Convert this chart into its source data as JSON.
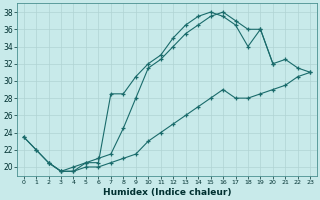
{
  "xlabel": "Humidex (Indice chaleur)",
  "bg_color": "#c8eaea",
  "grid_color": "#b0d4d4",
  "line_color": "#1a6b6b",
  "xlim": [
    -0.5,
    23.5
  ],
  "ylim": [
    19,
    39
  ],
  "line1_x": [
    0,
    1,
    2,
    3,
    4,
    5,
    6,
    7,
    8,
    9,
    10,
    11,
    12,
    13,
    14,
    15,
    16,
    17,
    18,
    19,
    20
  ],
  "line1_y": [
    23.5,
    22,
    20.5,
    19.5,
    19.5,
    20.5,
    20.5,
    28.5,
    28.5,
    30.5,
    32,
    33,
    35,
    36.5,
    37.5,
    38,
    37.5,
    36.5,
    34,
    36,
    32
  ],
  "line2_x": [
    0,
    1,
    2,
    3,
    4,
    5,
    6,
    7,
    8,
    9,
    10,
    11,
    12,
    13,
    14,
    15,
    16,
    17,
    18,
    19,
    20,
    21,
    22,
    23
  ],
  "line2_y": [
    23.5,
    22,
    20.5,
    19.5,
    20,
    20.5,
    21,
    21.5,
    24.5,
    28,
    31.5,
    32.5,
    34,
    35.5,
    36.5,
    37.5,
    38,
    37,
    36,
    36,
    32,
    32.5,
    31.5,
    31
  ],
  "line3_x": [
    2,
    3,
    4,
    5,
    6,
    7,
    8,
    9,
    10,
    11,
    12,
    13,
    14,
    15,
    16,
    17,
    18,
    19,
    20,
    21,
    22,
    23
  ],
  "line3_y": [
    20.5,
    19.5,
    19.5,
    20,
    20,
    20.5,
    21,
    21.5,
    23,
    24,
    25,
    26,
    27,
    28,
    29,
    28,
    28,
    28.5,
    29,
    29.5,
    30.5,
    31
  ]
}
